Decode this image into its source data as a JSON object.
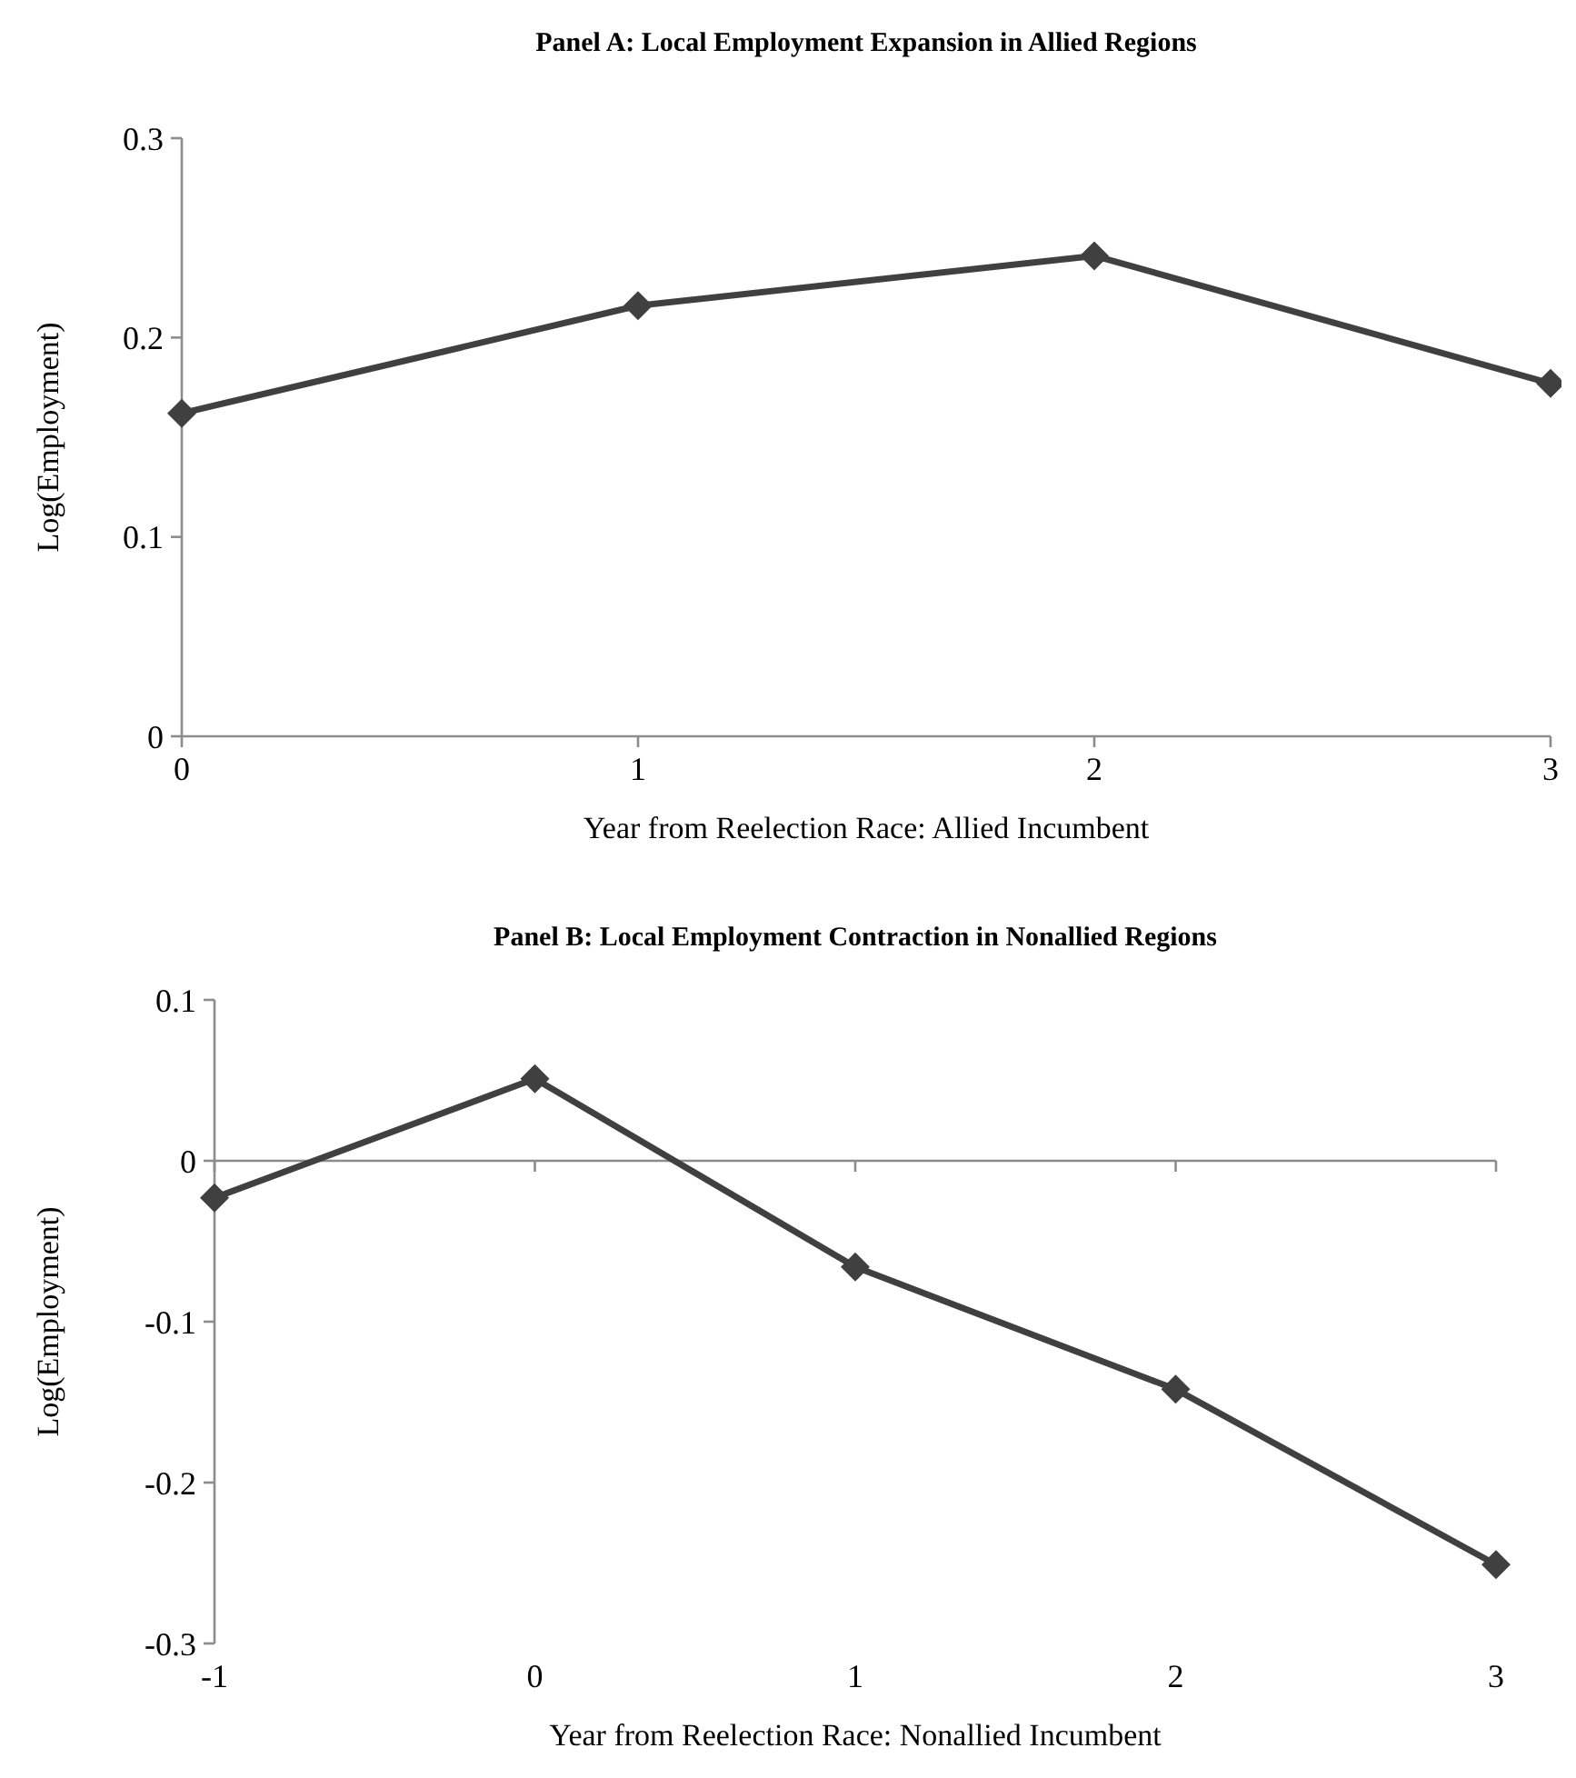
{
  "chart_data": [
    {
      "type": "line",
      "title": "Panel A: Local Employment Expansion in Allied Regions",
      "xlabel": "Year from Reelection Race: Allied Incumbent",
      "ylabel": "Log(Employment)",
      "x": [
        0,
        1,
        2,
        3
      ],
      "series": [
        {
          "color": "#404040",
          "values": [
            0.162,
            0.216,
            0.241,
            0.177
          ]
        }
      ],
      "xlim": [
        0,
        3
      ],
      "xticks": [
        0,
        1,
        2,
        3
      ],
      "ylim": [
        0,
        0.3
      ],
      "yticks": [
        0,
        0.1,
        0.2,
        0.3
      ],
      "marker": "diamond",
      "line_style": "solid"
    },
    {
      "type": "line",
      "title": "Panel B: Local Employment Contraction in Nonallied Regions",
      "xlabel": "Year from Reelection Race: Nonallied Incumbent",
      "ylabel": "Log(Employment)",
      "x": [
        -1,
        0,
        1,
        2,
        3
      ],
      "series": [
        {
          "color": "#404040",
          "values": [
            -0.023,
            0.051,
            -0.066,
            -0.142,
            -0.251
          ]
        }
      ],
      "xlim": [
        -1,
        3
      ],
      "xticks": [
        -1,
        0,
        1,
        2,
        3
      ],
      "ylim": [
        -0.3,
        0.1
      ],
      "yticks": [
        -0.3,
        -0.2,
        -0.1,
        0,
        0.1
      ],
      "marker": "diamond",
      "line_style": "solid"
    }
  ]
}
